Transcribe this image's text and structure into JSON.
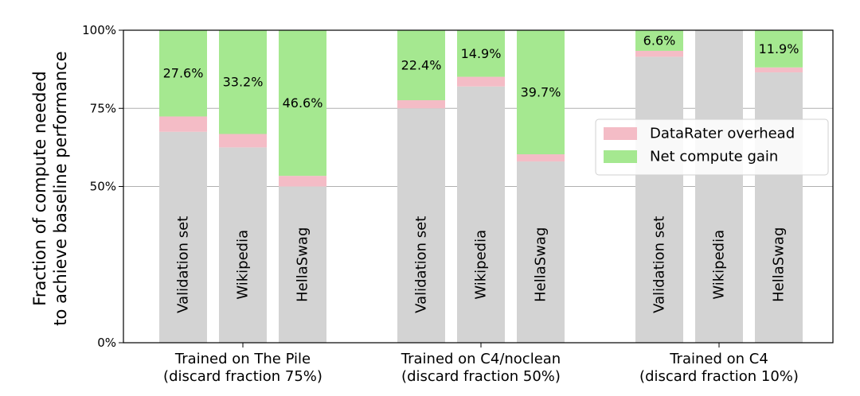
{
  "chart_data": {
    "type": "bar",
    "stacked": true,
    "ylabel_lines": [
      "Fraction of compute needed",
      "to achieve baseline performance"
    ],
    "ylim": [
      0,
      100
    ],
    "yticks": [
      0,
      50,
      75,
      100
    ],
    "ytick_labels": [
      "0%",
      "50%",
      "75%",
      "100%"
    ],
    "grid": "horizontal",
    "legend_position": "right",
    "legend": [
      {
        "name": "DataRater overhead",
        "color": "#f4bcc6"
      },
      {
        "name": "Net compute gain",
        "color": "#a5e890"
      }
    ],
    "base_color": "#d3d3d3",
    "groups": [
      {
        "label_lines": [
          "Trained on The Pile",
          "(discard fraction 75%)"
        ],
        "bars": [
          {
            "label": "Validation set",
            "base": 67.5,
            "overhead": 4.9,
            "gain": 27.6,
            "gain_label": "27.6%"
          },
          {
            "label": "Wikipedia",
            "base": 62.5,
            "overhead": 4.3,
            "gain": 33.2,
            "gain_label": "33.2%"
          },
          {
            "label": "HellaSwag",
            "base": 50.0,
            "overhead": 3.4,
            "gain": 46.6,
            "gain_label": "46.6%"
          }
        ]
      },
      {
        "label_lines": [
          "Trained on C4/noclean",
          "(discard fraction 50%)"
        ],
        "bars": [
          {
            "label": "Validation set",
            "base": 75.0,
            "overhead": 2.6,
            "gain": 22.4,
            "gain_label": "22.4%"
          },
          {
            "label": "Wikipedia",
            "base": 82.0,
            "overhead": 3.1,
            "gain": 14.9,
            "gain_label": "14.9%"
          },
          {
            "label": "HellaSwag",
            "base": 58.0,
            "overhead": 2.3,
            "gain": 39.7,
            "gain_label": "39.7%"
          }
        ]
      },
      {
        "label_lines": [
          "Trained on C4",
          "(discard fraction 10%)"
        ],
        "bars": [
          {
            "label": "Validation set",
            "base": 91.5,
            "overhead": 1.9,
            "gain": 6.6,
            "gain_label": "6.6%"
          },
          {
            "label": "Wikipedia",
            "base": 100.0,
            "overhead": 0.0,
            "gain": 0.0,
            "gain_label": ""
          },
          {
            "label": "HellaSwag",
            "base": 86.5,
            "overhead": 1.6,
            "gain": 11.9,
            "gain_label": "11.9%"
          }
        ]
      }
    ]
  }
}
